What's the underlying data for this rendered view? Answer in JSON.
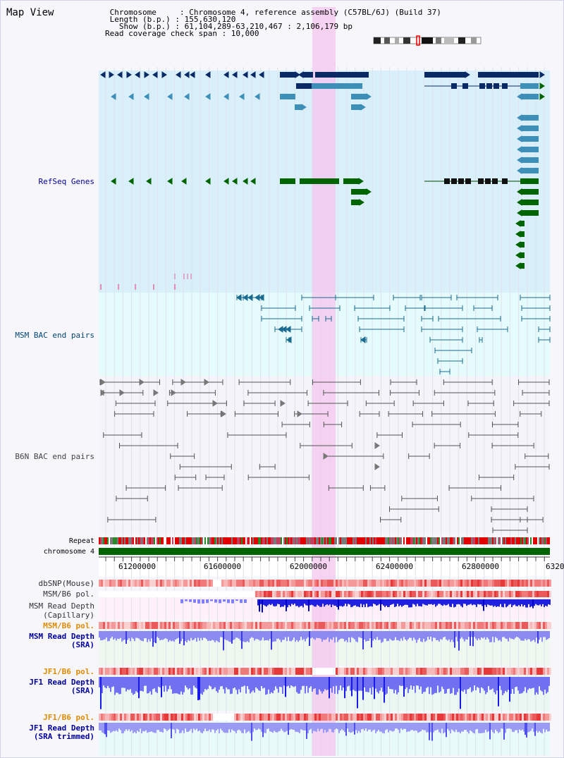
{
  "header": {
    "title": "Map View",
    "info_lines": [
      " Chromosome     : Chromosome 4, reference assembly (C57BL/6J) (Build 37)",
      " Length (b.p.) : 155,630,120",
      "   Show (b.p.) : 61,104,289-63,210,467 : 2,106,179 bp",
      "Read coverage check span : 10,000"
    ]
  },
  "tracks": {
    "refseq": "RefSeq Genes",
    "msm_bac": "MSM BAC end pairs",
    "b6n_bac": "B6N BAC end pairs",
    "repeat": "Repeat",
    "chromosome": "chromosome 4",
    "dbsnp": "dbSNP(Mouse)",
    "msm_b6_pol_1": "MSM/B6 pol.",
    "msm_depth_cap_1": "MSM Read Depth",
    "msm_depth_cap_2": "(Capillary)",
    "msm_b6_pol_2": "MSM/B6 pol.",
    "msm_depth_sra_1": "MSM Read Depth",
    "msm_depth_sra_2": "(SRA)",
    "jf1_b6_pol_1": "JF1/B6 pol.",
    "jf1_depth_sra_1": "JF1 Read Depth",
    "jf1_depth_sra_2": "(SRA)",
    "jf1_b6_pol_2": "JF1/B6 pol.",
    "jf1_depth_trim_1": "JF1 Read Depth",
    "jf1_depth_trim_2": "(SRA trimmed)"
  },
  "ruler": {
    "ticks": [
      "61200000",
      "61600000",
      "62000000",
      "62400000",
      "62800000",
      "6320"
    ]
  },
  "colors": {
    "gene_dark": "#0a2a66",
    "gene_mid": "#3d8fb8",
    "gene_green": "#006400",
    "highlight": "#f5c6ef",
    "label_blue": "#000099",
    "label_orange": "#e08a00"
  }
}
